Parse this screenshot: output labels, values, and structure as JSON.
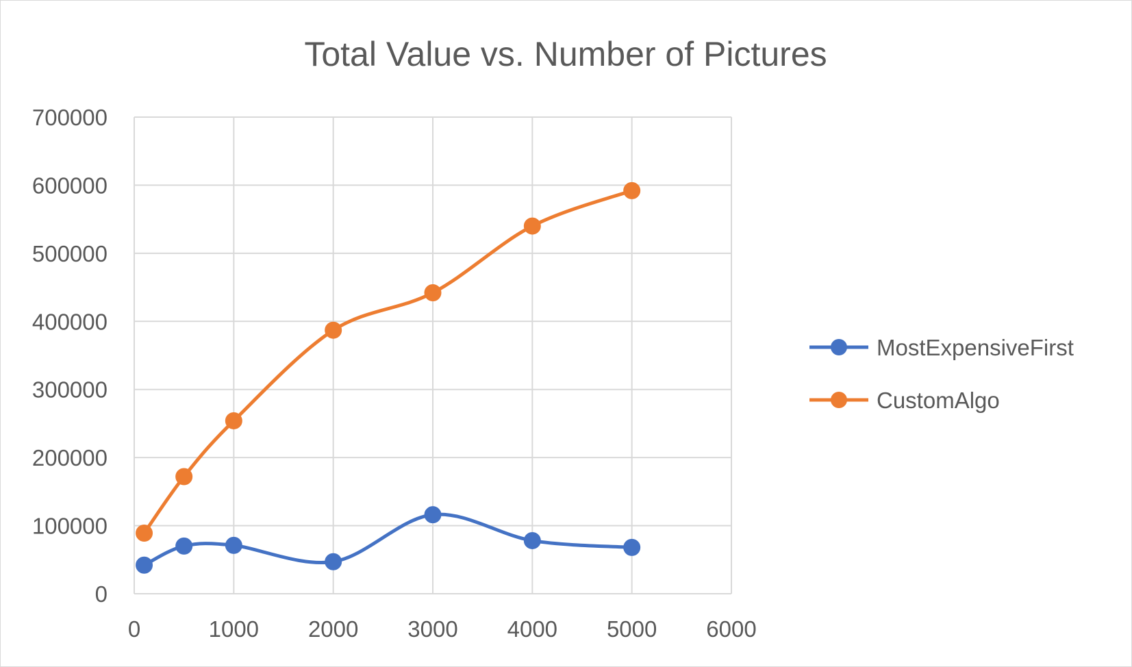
{
  "chart_data": {
    "type": "scatter",
    "title": "Total Value vs. Number of Pictures",
    "xlabel": "",
    "ylabel": "",
    "xlim": [
      0,
      6000
    ],
    "ylim": [
      0,
      700000
    ],
    "x_ticks": [
      0,
      1000,
      2000,
      3000,
      4000,
      5000,
      6000
    ],
    "y_ticks": [
      0,
      100000,
      200000,
      300000,
      400000,
      500000,
      600000,
      700000
    ],
    "grid": true,
    "smoothed_lines": true,
    "legend_position": "right",
    "series": [
      {
        "name": "MostExpensiveFirst",
        "color": "#4472C4",
        "x": [
          100,
          500,
          1000,
          2000,
          3000,
          4000,
          5000
        ],
        "y": [
          42000,
          70000,
          71000,
          47000,
          116000,
          78000,
          68000
        ]
      },
      {
        "name": "CustomAlgo",
        "color": "#ED7D31",
        "x": [
          100,
          500,
          1000,
          2000,
          3000,
          4000,
          5000
        ],
        "y": [
          89000,
          172000,
          254000,
          387000,
          442000,
          540000,
          592000
        ]
      }
    ]
  }
}
